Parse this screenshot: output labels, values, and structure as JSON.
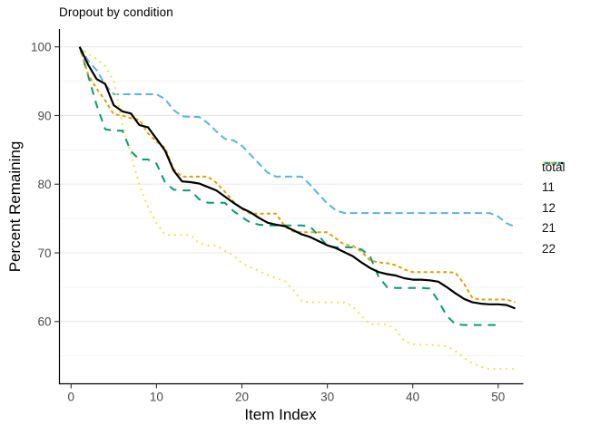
{
  "figure": {
    "title": "Dropout by condition",
    "x_axis": {
      "label": "Item Index",
      "ticks": [
        0,
        10,
        20,
        30,
        40,
        50
      ]
    },
    "y_axis": {
      "label": "Percent Remaining",
      "ticks": [
        100,
        90,
        80,
        70,
        60
      ],
      "minor_ticks": [
        95,
        85,
        75,
        65,
        55
      ]
    },
    "legend_entries": [
      "total",
      "11",
      "12",
      "21",
      "22"
    ]
  },
  "chart_data": {
    "type": "line",
    "title": "Dropout by condition",
    "xlabel": "Item Index",
    "ylabel": "Percent Remaining",
    "xlim": [
      -1.4,
      52.9
    ],
    "ylim": [
      51,
      101.3
    ],
    "x_ticks": [
      0,
      10,
      20,
      30,
      40,
      50
    ],
    "y_ticks": [
      100,
      90,
      80,
      70,
      60
    ],
    "y_minor_ticks": [
      95,
      85,
      75,
      65,
      55
    ],
    "grid": "horizontal-only",
    "legend_position": "right-middle",
    "x": [
      1,
      2,
      3,
      4,
      5,
      6,
      7,
      8,
      9,
      10,
      11,
      12,
      13,
      14,
      15,
      16,
      17,
      18,
      19,
      20,
      21,
      22,
      23,
      24,
      25,
      26,
      27,
      28,
      29,
      30,
      31,
      32,
      33,
      34,
      35,
      36,
      37,
      38,
      39,
      40,
      41,
      42,
      43,
      44,
      45,
      46,
      47,
      48,
      49,
      50,
      51,
      52
    ],
    "series": [
      {
        "name": "12",
        "color": "#56B4E9",
        "linetype": "dash",
        "values": [
          100,
          98.0,
          96.6,
          94.5,
          93.1,
          93.1,
          93.1,
          93.1,
          93.1,
          93.1,
          92.4,
          90.8,
          89.9,
          89.8,
          89.8,
          88.9,
          87.7,
          86.6,
          86.4,
          85.6,
          84.3,
          83.0,
          81.7,
          81.1,
          81.1,
          81.1,
          81.1,
          79.9,
          78.5,
          77.2,
          76.2,
          75.8,
          75.8,
          75.8,
          75.8,
          75.8,
          75.8,
          75.8,
          75.8,
          75.8,
          75.8,
          75.8,
          75.8,
          75.8,
          75.8,
          75.8,
          75.8,
          75.8,
          75.8,
          75.3,
          74.3,
          73.8
        ]
      },
      {
        "name": "22",
        "color": "#F0E442",
        "linetype": "dotted",
        "values": [
          100,
          99.0,
          98.2,
          97.2,
          95.0,
          88.8,
          84.3,
          79.9,
          76.7,
          74.3,
          72.6,
          72.6,
          72.6,
          72.6,
          71.4,
          71.1,
          71.1,
          70.3,
          69.6,
          68.5,
          67.9,
          67.4,
          66.8,
          66.3,
          65.9,
          64.6,
          63.0,
          62.8,
          62.8,
          62.8,
          62.8,
          62.8,
          62.2,
          60.8,
          59.6,
          59.6,
          59.6,
          58.8,
          57.2,
          56.7,
          56.6,
          56.6,
          56.5,
          56.4,
          55.7,
          54.7,
          53.9,
          53.4,
          53.1,
          53.1,
          53.1,
          53.1
        ]
      },
      {
        "name": "21",
        "color": "#009E73",
        "linetype": "longdash",
        "values": [
          100,
          95.8,
          91.5,
          88.0,
          87.8,
          87.8,
          84.8,
          83.6,
          83.6,
          83.0,
          80.3,
          79.2,
          79.1,
          79.1,
          77.8,
          77.3,
          77.3,
          77.3,
          76.1,
          75.2,
          74.4,
          74.1,
          74.0,
          74.0,
          74.0,
          74.0,
          74.0,
          73.8,
          72.5,
          71.0,
          70.8,
          70.8,
          70.8,
          70.5,
          69.5,
          66.5,
          65.0,
          64.9,
          64.9,
          64.9,
          64.9,
          64.8,
          63.0,
          60.8,
          59.6,
          59.5,
          59.5,
          59.5,
          59.5,
          59.5,
          null,
          null
        ]
      },
      {
        "name": "11",
        "color": "#E69F00",
        "linetype": "shortdash",
        "values": [
          100,
          96.0,
          93.9,
          92.2,
          90.2,
          90.0,
          89.6,
          89.4,
          87.4,
          86.2,
          85.3,
          82.2,
          81.1,
          81.1,
          81.1,
          81.1,
          80.2,
          78.9,
          77.5,
          76.4,
          75.7,
          75.7,
          75.7,
          75.7,
          73.9,
          73.1,
          73.0,
          73.0,
          73.0,
          73.0,
          72.1,
          71.2,
          71.0,
          70.2,
          68.9,
          68.6,
          68.5,
          68.2,
          67.6,
          67.2,
          67.2,
          67.2,
          67.2,
          67.2,
          67.1,
          65.5,
          63.4,
          63.2,
          63.2,
          63.2,
          63.2,
          62.8
        ]
      },
      {
        "name": "total",
        "color": "#000000",
        "linetype": "solid",
        "values": [
          100,
          97.4,
          95.3,
          94.6,
          91.5,
          90.6,
          90.3,
          88.6,
          88.3,
          86.6,
          84.9,
          82.0,
          80.4,
          80.3,
          80.1,
          79.6,
          79.1,
          78.2,
          77.3,
          76.5,
          75.9,
          75.1,
          74.4,
          74.1,
          73.9,
          73.3,
          72.7,
          72.3,
          71.7,
          71.1,
          70.7,
          70.1,
          69.5,
          68.6,
          67.8,
          67.2,
          66.9,
          66.7,
          66.3,
          66.1,
          66.1,
          66.0,
          65.8,
          65.0,
          64.1,
          63.3,
          62.8,
          62.6,
          62.5,
          62.5,
          62.4,
          61.9
        ]
      }
    ],
    "legend_order": [
      "total",
      "11",
      "12",
      "21",
      "22"
    ]
  }
}
